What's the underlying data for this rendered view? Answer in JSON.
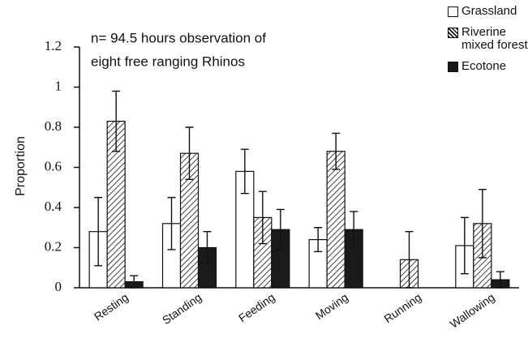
{
  "chart_data": {
    "type": "bar",
    "ylabel": "Proportion",
    "annotation": [
      "n= 94.5 hours observation of",
      "eight free ranging Rhinos"
    ],
    "categories": [
      "Resting",
      "Standing",
      "Feeding",
      "Moving",
      "Running",
      "Wallowing"
    ],
    "series": [
      {
        "name": "Grassland",
        "color": "#ffffff",
        "pattern": "solid",
        "values": [
          0.28,
          0.32,
          0.58,
          0.24,
          null,
          0.21
        ],
        "errors": [
          0.17,
          0.13,
          0.11,
          0.06,
          null,
          0.14
        ]
      },
      {
        "name": "Riverine mixed forest",
        "color": "#111111",
        "pattern": "hatch",
        "values": [
          0.83,
          0.67,
          0.35,
          0.68,
          0.14,
          0.32
        ],
        "errors": [
          0.15,
          0.13,
          0.13,
          0.09,
          0.14,
          0.17
        ]
      },
      {
        "name": "Ecotone",
        "color": "#1a1a1a",
        "pattern": "solid",
        "values": [
          0.03,
          0.2,
          0.29,
          0.29,
          null,
          0.04
        ],
        "errors": [
          0.03,
          0.08,
          0.1,
          0.09,
          null,
          0.04
        ]
      }
    ],
    "ylim": [
      0,
      1.2
    ],
    "yticks": [
      0,
      0.2,
      0.4,
      0.6,
      0.8,
      1,
      1.2
    ],
    "legend": "upper right",
    "grid": false
  }
}
